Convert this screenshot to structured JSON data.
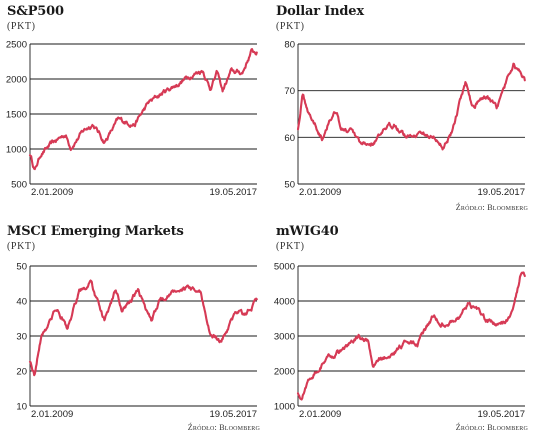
{
  "source_prefix": "Źródło:",
  "source_name": "Bloomberg",
  "chart_data": [
    {
      "type": "line",
      "title": "S&P500",
      "ylabel": "(PKT)",
      "ylim": [
        500,
        2500
      ],
      "yticks": [
        "500",
        "1000",
        "1500",
        "2000",
        "2500"
      ],
      "x_start_label": "2.01.2009",
      "x_end_label": "19.05.2017",
      "color": "#d63a55",
      "series": [
        {
          "x": [
            "2009-01-02",
            "2009-03-09",
            "2009-06-01",
            "2010-01-04",
            "2010-04-23",
            "2010-07-02",
            "2011-01-03",
            "2011-04-29",
            "2011-10-03",
            "2012-04-02",
            "2012-11-15",
            "2013-05-21",
            "2014-01-02",
            "2014-06-02",
            "2014-12-01",
            "2015-05-20",
            "2015-08-25",
            "2015-12-01",
            "2016-02-11",
            "2016-06-01",
            "2016-11-04",
            "2017-03-01",
            "2017-05-19"
          ],
          "values": [
            930,
            700,
            940,
            1130,
            1210,
            1030,
            1270,
            1360,
            1100,
            1410,
            1360,
            1660,
            1830,
            1920,
            2050,
            2130,
            1870,
            2090,
            1830,
            2100,
            2090,
            2390,
            2380
          ]
        }
      ]
    },
    {
      "type": "line",
      "title": "Dollar Index",
      "ylabel": "(PKT)",
      "ylim": [
        50,
        80
      ],
      "yticks": [
        "50",
        "60",
        "70",
        "80"
      ],
      "x_start_label": "2.01.2009",
      "x_end_label": "19.05.2017",
      "color": "#d63a55",
      "series": [
        {
          "x": [
            "2009-01-02",
            "2009-03-04",
            "2009-06-01",
            "2009-11-25",
            "2010-03-01",
            "2010-06-07",
            "2010-08-01",
            "2011-01-01",
            "2011-05-02",
            "2011-10-03",
            "2012-03-01",
            "2012-07-24",
            "2013-01-01",
            "2013-06-01",
            "2014-01-01",
            "2014-05-06",
            "2014-09-01",
            "2015-03-13",
            "2015-06-01",
            "2016-01-01",
            "2016-05-03",
            "2016-12-20",
            "2017-03-01",
            "2017-05-19"
          ],
          "values": [
            62,
            69,
            65,
            60,
            64,
            66,
            62,
            61,
            58,
            59,
            61,
            63,
            60,
            61,
            60,
            58,
            61,
            72,
            67,
            69,
            66,
            76,
            74,
            72
          ]
        }
      ]
    },
    {
      "type": "line",
      "title": "MSCI Emerging Markets",
      "ylabel": "(PKT)",
      "ylim": [
        10,
        50
      ],
      "yticks": [
        "10",
        "20",
        "30",
        "40",
        "50"
      ],
      "x_start_label": "2.01.2009",
      "x_end_label": "19.05.2017",
      "color": "#d63a55",
      "series": [
        {
          "x": [
            "2009-01-02",
            "2009-03-02",
            "2009-06-01",
            "2010-01-01",
            "2010-05-25",
            "2010-11-01",
            "2011-04-01",
            "2011-10-03",
            "2012-03-01",
            "2012-06-01",
            "2013-01-01",
            "2013-06-24",
            "2013-10-01",
            "2014-09-01",
            "2015-04-27",
            "2015-08-24",
            "2016-01-21",
            "2016-06-01",
            "2016-09-01",
            "2017-01-01",
            "2017-05-19"
          ],
          "values": [
            23,
            19,
            30,
            38,
            32,
            43,
            45,
            34,
            43,
            37,
            43,
            34,
            40,
            44,
            42,
            31,
            28,
            34,
            37,
            36,
            41
          ]
        }
      ]
    },
    {
      "type": "line",
      "title": "mWIG40",
      "ylabel": "(PKT)",
      "ylim": [
        1000,
        5000
      ],
      "yticks": [
        "1000",
        "2000",
        "3000",
        "4000",
        "5000"
      ],
      "x_start_label": "2.01.2009",
      "x_end_label": "19.05.2017",
      "color": "#d63a55",
      "series": [
        {
          "x": [
            "2009-01-02",
            "2009-02-18",
            "2009-06-01",
            "2010-01-01",
            "2010-06-01",
            "2011-04-01",
            "2011-08-01",
            "2011-10-04",
            "2012-01-01",
            "2012-06-01",
            "2013-01-01",
            "2013-06-01",
            "2014-01-01",
            "2014-04-01",
            "2014-12-01",
            "2015-05-01",
            "2016-01-01",
            "2016-06-01",
            "2016-11-01",
            "2017-02-01",
            "2017-04-01",
            "2017-05-19"
          ],
          "values": [
            1400,
            1150,
            1800,
            2300,
            2500,
            2950,
            2800,
            2050,
            2300,
            2400,
            2850,
            2800,
            3600,
            3300,
            3500,
            4000,
            3400,
            3350,
            3500,
            4300,
            4900,
            4800
          ]
        }
      ]
    }
  ]
}
